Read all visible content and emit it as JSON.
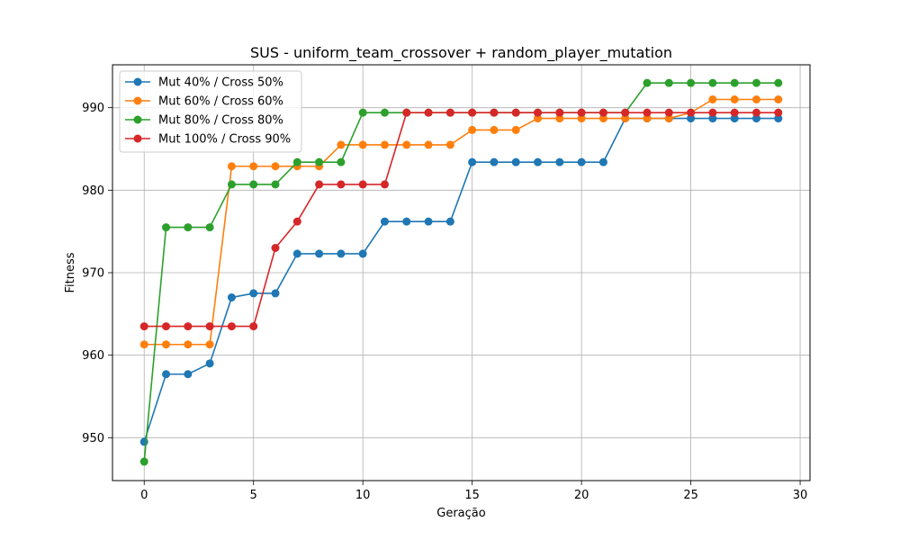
{
  "chart_data": {
    "type": "line",
    "title": "SUS - uniform_team_crossover + random_player_mutation",
    "xlabel": "Geração",
    "ylabel": "Fitness",
    "xlim": [
      -1.45,
      30.45
    ],
    "ylim": [
      944.8,
      995.2
    ],
    "xticks": [
      0,
      5,
      10,
      15,
      20,
      25,
      30
    ],
    "yticks": [
      950,
      960,
      970,
      980,
      990
    ],
    "grid": true,
    "legend_position": "top-left",
    "x": [
      0,
      1,
      2,
      3,
      4,
      5,
      6,
      7,
      8,
      9,
      10,
      11,
      12,
      13,
      14,
      15,
      16,
      17,
      18,
      19,
      20,
      21,
      22,
      23,
      24,
      25,
      26,
      27,
      28,
      29
    ],
    "series": [
      {
        "name": "Mut 40% / Cross 50%",
        "color": "#1f77b4",
        "values": [
          949.5,
          957.7,
          957.7,
          959.0,
          967.0,
          967.5,
          967.5,
          972.3,
          972.3,
          972.3,
          972.3,
          976.2,
          976.2,
          976.2,
          976.2,
          983.4,
          983.4,
          983.4,
          983.4,
          983.4,
          983.4,
          983.4,
          988.7,
          988.7,
          988.7,
          988.7,
          988.7,
          988.7,
          988.7,
          988.7
        ]
      },
      {
        "name": "Mut 60% / Cross 60%",
        "color": "#ff7f0e",
        "values": [
          961.3,
          961.3,
          961.3,
          961.3,
          982.9,
          982.9,
          982.9,
          982.9,
          982.9,
          985.5,
          985.5,
          985.5,
          985.5,
          985.5,
          985.5,
          987.3,
          987.3,
          987.3,
          988.7,
          988.7,
          988.7,
          988.7,
          988.7,
          988.7,
          988.7,
          989.4,
          991.0,
          991.0,
          991.0,
          991.0
        ]
      },
      {
        "name": "Mut 80% / Cross 80%",
        "color": "#2ca02c",
        "values": [
          947.1,
          975.5,
          975.5,
          975.5,
          980.7,
          980.7,
          980.7,
          983.4,
          983.4,
          983.4,
          989.4,
          989.4,
          989.4,
          989.4,
          989.4,
          989.4,
          989.4,
          989.4,
          989.4,
          989.4,
          989.4,
          989.4,
          989.4,
          993.0,
          993.0,
          993.0,
          993.0,
          993.0,
          993.0,
          993.0
        ]
      },
      {
        "name": "Mut 100% / Cross 90%",
        "color": "#d62728",
        "values": [
          963.5,
          963.5,
          963.5,
          963.5,
          963.5,
          963.5,
          973.0,
          976.2,
          980.7,
          980.7,
          980.7,
          980.7,
          989.4,
          989.4,
          989.4,
          989.4,
          989.4,
          989.4,
          989.4,
          989.4,
          989.4,
          989.4,
          989.4,
          989.4,
          989.4,
          989.4,
          989.4,
          989.4,
          989.4,
          989.4
        ]
      }
    ]
  }
}
